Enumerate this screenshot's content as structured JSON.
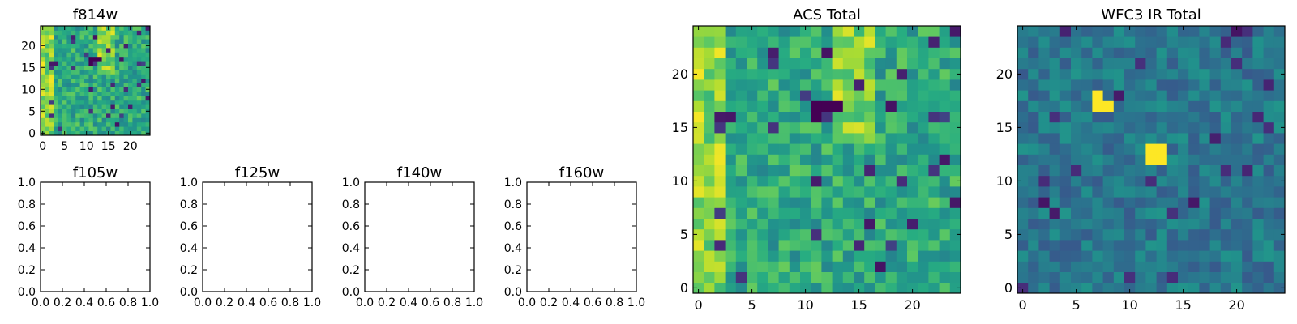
{
  "colormap": "viridis",
  "chart_data": [
    {
      "type": "heatmap",
      "title": "f814w",
      "rows": 25,
      "cols": 25,
      "xlim": [
        -0.5,
        24.5
      ],
      "ylim": [
        -0.5,
        24.5
      ],
      "xticks": [
        0,
        5,
        10,
        15,
        20
      ],
      "yticks": [
        0,
        5,
        10,
        15,
        20
      ],
      "xticklabels": [
        "0",
        "5",
        "10",
        "15",
        "20"
      ],
      "yticklabels": [
        "0",
        "5",
        "10",
        "15",
        "20"
      ],
      "data_kind": "random-field",
      "seed": 7,
      "bright_band": {
        "x": [
          0,
          2
        ],
        "y": [
          0,
          24
        ]
      },
      "bright_spot": {
        "x": [
          13,
          16
        ],
        "y": [
          14,
          24
        ]
      },
      "dark_spots": [
        [
          11,
          17
        ],
        [
          12,
          17
        ],
        [
          13,
          17
        ],
        [
          11,
          16
        ]
      ]
    },
    {
      "type": "empty",
      "title": "f105w",
      "xlim": [
        0,
        1
      ],
      "ylim": [
        0,
        1
      ],
      "xticklabels": [
        "0.0",
        "0.2",
        "0.4",
        "0.6",
        "0.8",
        "1.0"
      ],
      "yticklabels": [
        "0.0",
        "0.2",
        "0.4",
        "0.6",
        "0.8",
        "1.0"
      ]
    },
    {
      "type": "empty",
      "title": "f125w",
      "xlim": [
        0,
        1
      ],
      "ylim": [
        0,
        1
      ],
      "xticklabels": [
        "0.0",
        "0.2",
        "0.4",
        "0.6",
        "0.8",
        "1.0"
      ],
      "yticklabels": [
        "0.0",
        "0.2",
        "0.4",
        "0.6",
        "0.8",
        "1.0"
      ]
    },
    {
      "type": "empty",
      "title": "f140w",
      "xlim": [
        0,
        1
      ],
      "ylim": [
        0,
        1
      ],
      "xticklabels": [
        "0.0",
        "0.2",
        "0.4",
        "0.6",
        "0.8",
        "1.0"
      ],
      "yticklabels": [
        "0.0",
        "0.2",
        "0.4",
        "0.6",
        "0.8",
        "1.0"
      ]
    },
    {
      "type": "empty",
      "title": "f160w",
      "xlim": [
        0,
        1
      ],
      "ylim": [
        0,
        1
      ],
      "xticklabels": [
        "0.0",
        "0.2",
        "0.4",
        "0.6",
        "0.8",
        "1.0"
      ],
      "yticklabels": [
        "0.0",
        "0.2",
        "0.4",
        "0.6",
        "0.8",
        "1.0"
      ]
    },
    {
      "type": "heatmap",
      "title": "ACS Total",
      "rows": 25,
      "cols": 25,
      "xlim": [
        -0.5,
        24.5
      ],
      "ylim": [
        -0.5,
        24.5
      ],
      "xticks": [
        0,
        5,
        10,
        15,
        20
      ],
      "yticks": [
        0,
        5,
        10,
        15,
        20
      ],
      "xticklabels": [
        "0",
        "5",
        "10",
        "15",
        "20"
      ],
      "yticklabels": [
        "0",
        "5",
        "10",
        "15",
        "20"
      ],
      "data_kind": "random-field",
      "seed": 7,
      "bright_band": {
        "x": [
          0,
          2
        ],
        "y": [
          0,
          24
        ]
      },
      "bright_spot": {
        "x": [
          13,
          16
        ],
        "y": [
          14,
          24
        ]
      },
      "dark_spots": [
        [
          11,
          17
        ],
        [
          12,
          17
        ],
        [
          13,
          17
        ],
        [
          11,
          16
        ]
      ]
    },
    {
      "type": "heatmap",
      "title": "WFC3 IR Total",
      "rows": 25,
      "cols": 25,
      "xlim": [
        -0.5,
        24.5
      ],
      "ylim": [
        -0.5,
        24.5
      ],
      "xticks": [
        0,
        5,
        10,
        15,
        20
      ],
      "yticks": [
        0,
        5,
        10,
        15,
        20
      ],
      "xticklabels": [
        "0",
        "5",
        "10",
        "15",
        "20"
      ],
      "yticklabels": [
        "0",
        "5",
        "10",
        "15",
        "20"
      ],
      "data_kind": "low-noise-field",
      "seed": 19,
      "bright_pixels": [
        [
          7,
          17
        ],
        [
          8,
          17
        ],
        [
          7,
          18
        ],
        [
          12,
          12
        ],
        [
          13,
          12
        ],
        [
          12,
          13
        ],
        [
          13,
          13
        ]
      ]
    }
  ]
}
